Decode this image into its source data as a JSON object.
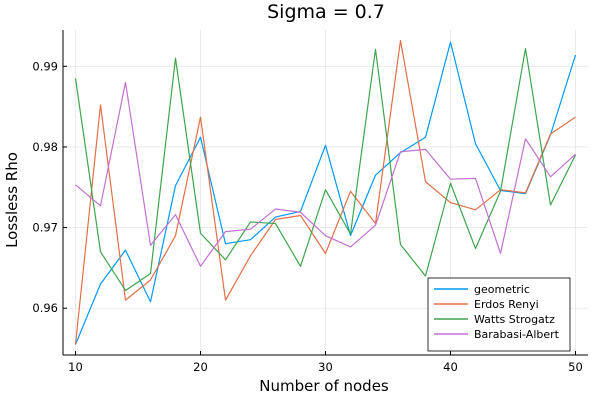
{
  "chart_data": {
    "type": "line",
    "title": "Sigma = 0.7",
    "xlabel": "Number of nodes",
    "ylabel": "Lossless Rho",
    "xlim": [
      9,
      51
    ],
    "ylim": [
      0.9542,
      0.9945
    ],
    "x_ticks": [
      10,
      20,
      30,
      40,
      50
    ],
    "y_ticks": [
      0.96,
      0.97,
      0.98,
      0.99
    ],
    "x_tick_labels": [
      "10",
      "20",
      "30",
      "40",
      "50"
    ],
    "y_tick_labels": [
      "0.96",
      "0.97",
      "0.98",
      "0.99"
    ],
    "grid": true,
    "legend_position": "bottom-right",
    "x": [
      10,
      12,
      14,
      16,
      18,
      20,
      22,
      24,
      26,
      28,
      30,
      32,
      34,
      36,
      38,
      40,
      42,
      44,
      46,
      48,
      50
    ],
    "series": [
      {
        "name": "geometric",
        "color": "#009AFA",
        "values": [
          0.9555,
          0.963,
          0.9672,
          0.9608,
          0.9752,
          0.9812,
          0.968,
          0.9685,
          0.9713,
          0.972,
          0.9802,
          0.969,
          0.9765,
          0.9793,
          0.9812,
          0.993,
          0.9804,
          0.9746,
          0.9742,
          0.9815,
          0.9914
        ]
      },
      {
        "name": "Erdos Renyi",
        "color": "#E36F47",
        "values": [
          0.9555,
          0.9852,
          0.961,
          0.9635,
          0.969,
          0.9837,
          0.961,
          0.9665,
          0.971,
          0.9715,
          0.9668,
          0.9745,
          0.9705,
          0.9932,
          0.9757,
          0.9731,
          0.9722,
          0.9747,
          0.9743,
          0.9816,
          0.9837
        ]
      },
      {
        "name": "Watts Strogatz",
        "color": "#3EA44E",
        "values": [
          0.9885,
          0.967,
          0.9622,
          0.9643,
          0.991,
          0.9693,
          0.966,
          0.9707,
          0.9705,
          0.9652,
          0.9747,
          0.9692,
          0.9921,
          0.9679,
          0.964,
          0.9755,
          0.9674,
          0.9745,
          0.9922,
          0.9728,
          0.979
        ]
      },
      {
        "name": "Barabasi-Albert",
        "color": "#C271D2",
        "values": [
          0.9753,
          0.9727,
          0.988,
          0.9678,
          0.9716,
          0.9652,
          0.9695,
          0.9698,
          0.9723,
          0.9719,
          0.969,
          0.9676,
          0.9703,
          0.9794,
          0.9797,
          0.976,
          0.9761,
          0.9668,
          0.981,
          0.9763,
          0.9791
        ]
      }
    ]
  }
}
